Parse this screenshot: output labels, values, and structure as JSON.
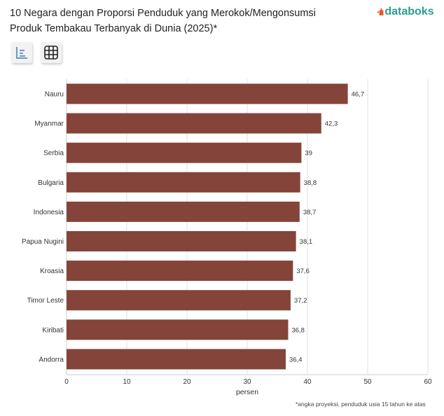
{
  "header": {
    "title": "10 Negara dengan Proporsi Penduduk yang Merokok/Mengonsumsi Produk Tembakau Terbanyak di Dunia (2025)*",
    "logo": "databoks"
  },
  "toolbar": {
    "chart_view": "bar-chart-icon",
    "table_view": "table-icon"
  },
  "footnote": "*angka proyeksi, penduduk usia 15 tahun ke atas",
  "colors": {
    "bar": "#84443a",
    "grid": "#e2e2e2"
  },
  "chart_data": {
    "type": "bar",
    "orientation": "horizontal",
    "title": "10 Negara dengan Proporsi Penduduk yang Merokok/Mengonsumsi Produk Tembakau Terbanyak di Dunia (2025)*",
    "categories": [
      "Nauru",
      "Myanmar",
      "Serbia",
      "Bulgaria",
      "Indonesia",
      "Papua Nugini",
      "Kroasia",
      "Timor Leste",
      "Kiribati",
      "Andorra"
    ],
    "values": [
      46.7,
      42.3,
      39,
      38.8,
      38.7,
      38.1,
      37.6,
      37.2,
      36.8,
      36.4
    ],
    "labels": [
      "46,7",
      "42,3",
      "39",
      "38,8",
      "38,7",
      "38,1",
      "37,6",
      "37,2",
      "36,8",
      "36,4"
    ],
    "xlabel": "persen",
    "ylabel": "",
    "xlim": [
      0,
      60
    ],
    "ticks": [
      "0",
      "10",
      "20",
      "30",
      "40",
      "50",
      "60"
    ],
    "grid": true,
    "legend": "none"
  }
}
